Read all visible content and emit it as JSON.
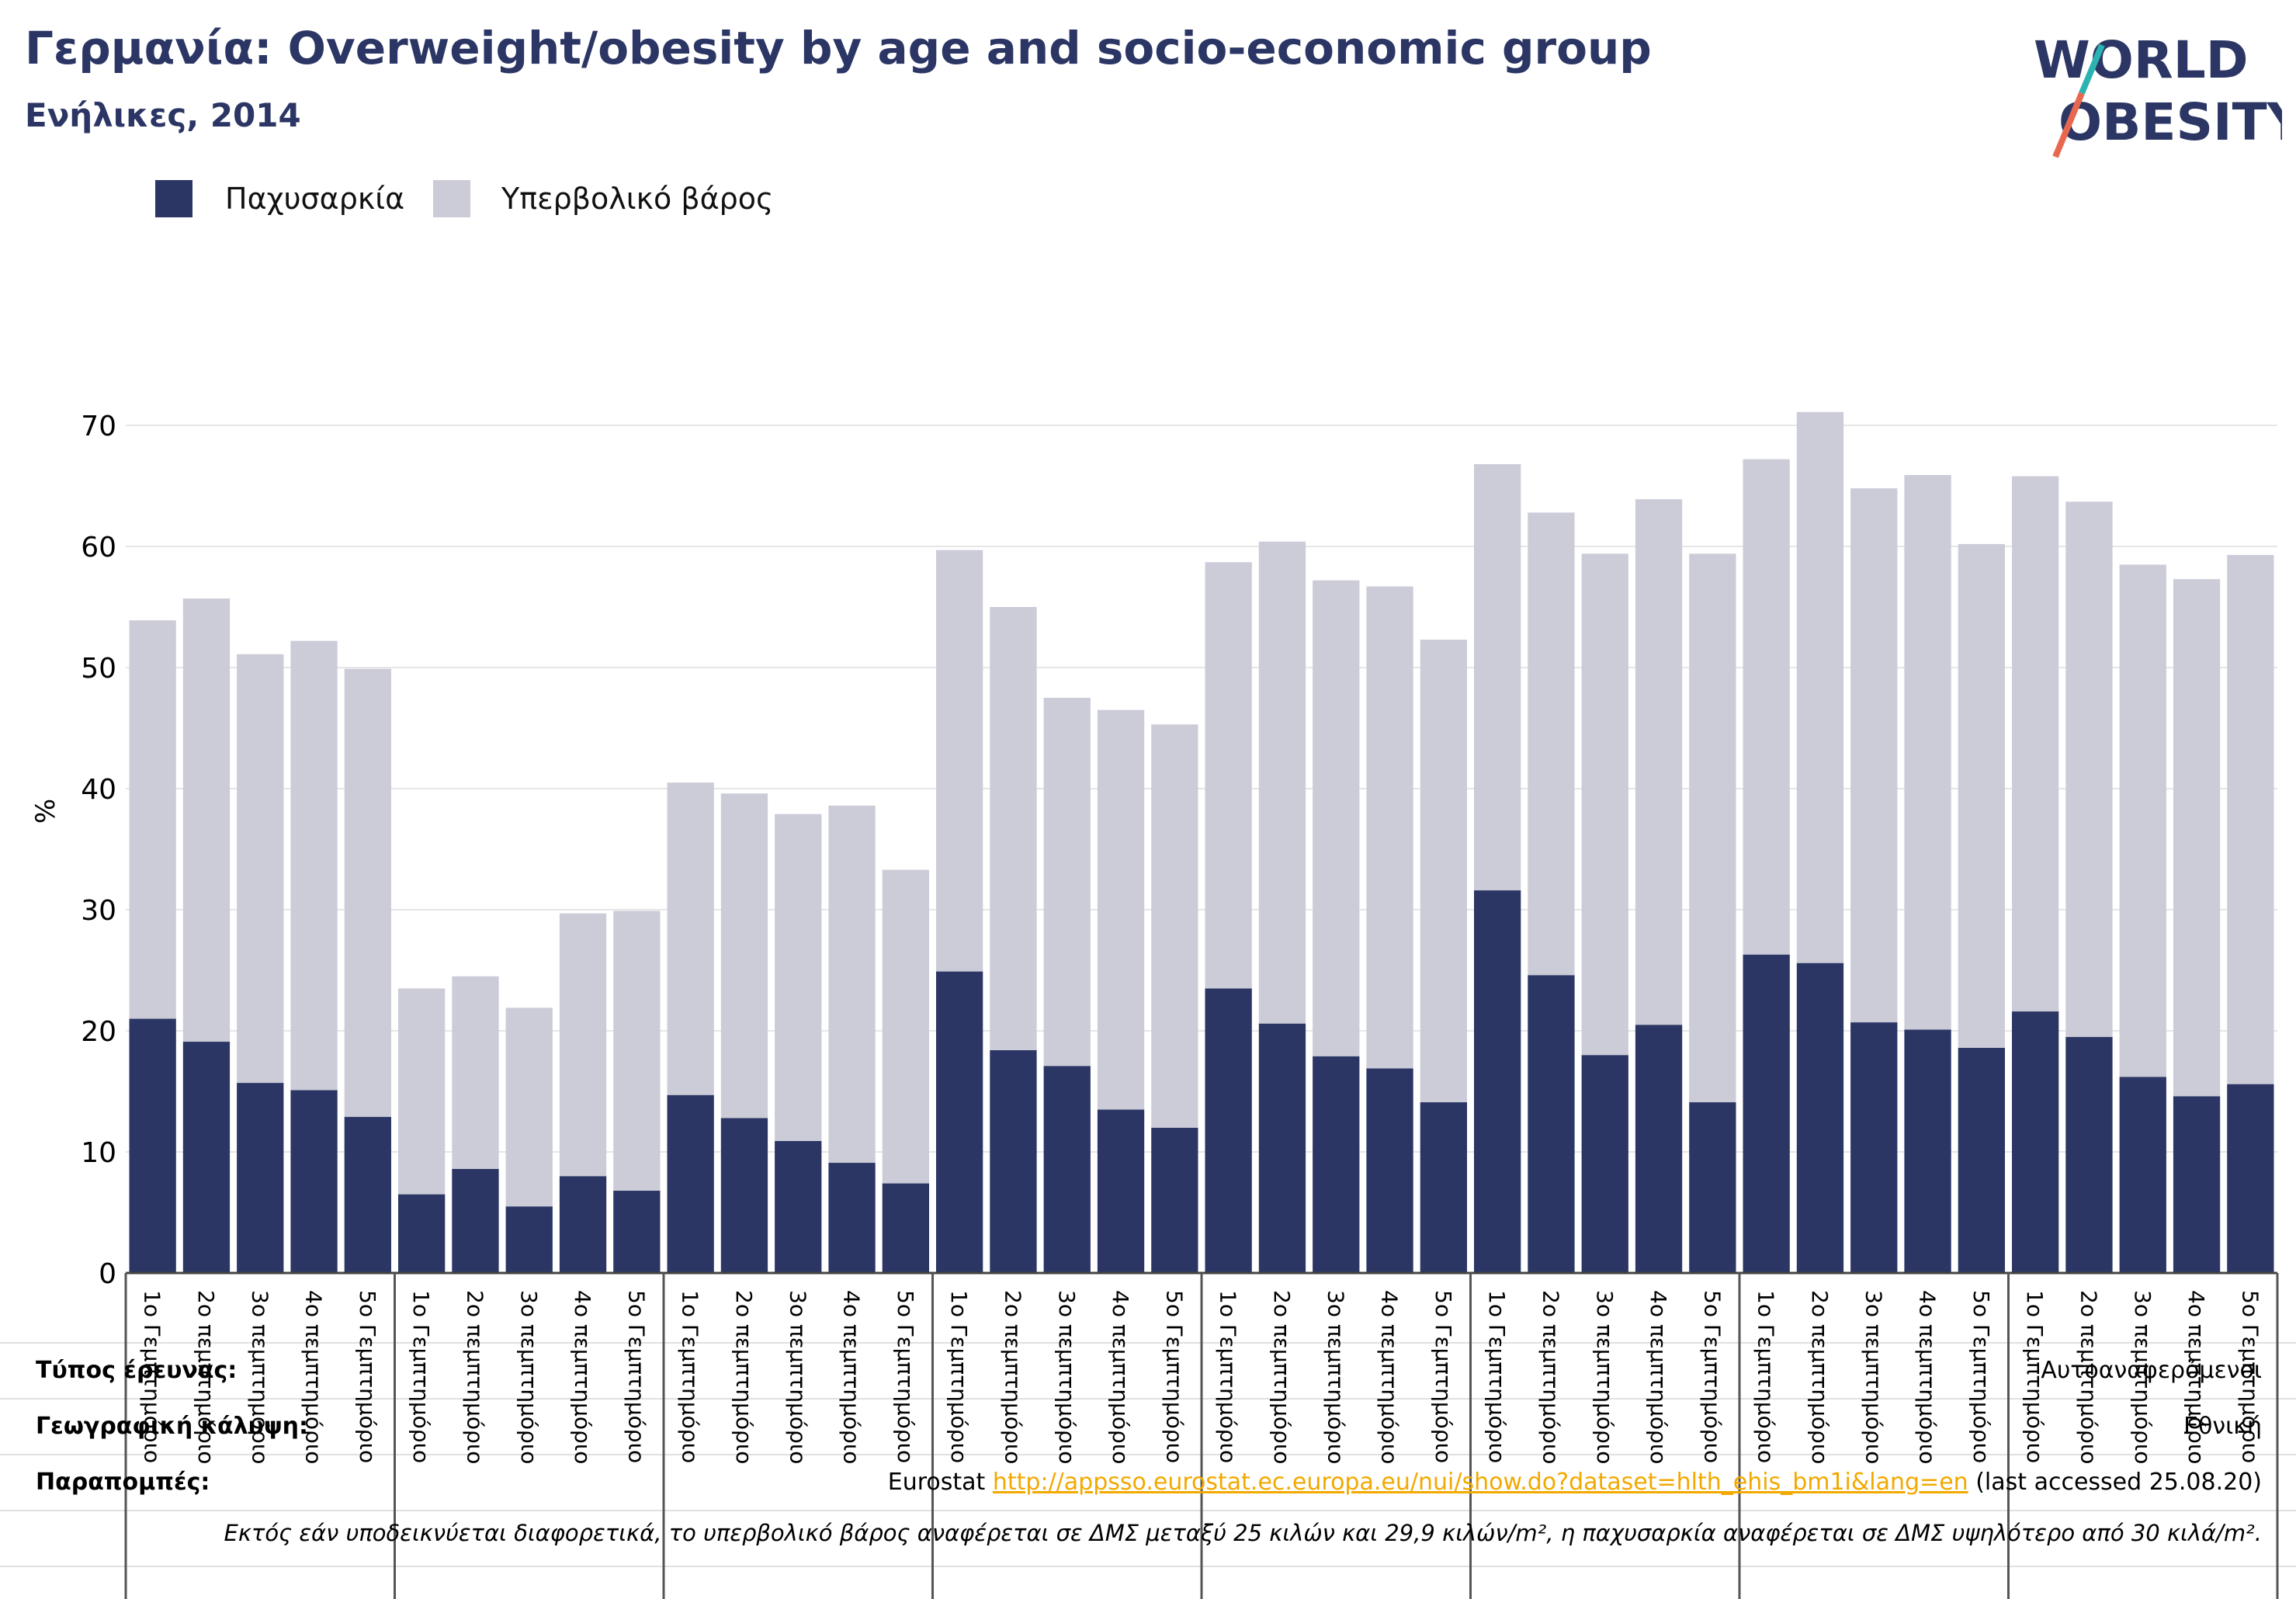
{
  "header": {
    "title": "Γερμανία: Overweight/obesity by age and socio-economic group",
    "subtitle": "Ενήλικες, 2014"
  },
  "logo": {
    "line1": "WORLD",
    "line2": "OBESITY"
  },
  "colors": {
    "obesity": "#2b3665",
    "overweight": "#cbccd8",
    "title": "#2b3665",
    "link": "#f2a900"
  },
  "chart_data": {
    "type": "bar",
    "stacked": true,
    "ylabel": "%",
    "ylim": [
      0,
      75
    ],
    "yticks": [
      0,
      10,
      20,
      30,
      40,
      50,
      60,
      70
    ],
    "grid": true,
    "legend_position": "top-left",
    "categories": [
      "1ο Γεμπτημόριο",
      "2ο πεμπτημόριο",
      "3ο πεμπτημόριο",
      "4ο πεμπτημόριο",
      "5ο Γεμπτημόριο",
      "1ο Γεμπτημόριο",
      "2ο πεμπτημόριο",
      "3ο πεμπτημόριο",
      "4ο πεμπτημόριο",
      "5ο Γεμπτημόριο",
      "1ο Γεμπτημόριο",
      "2ο πεμπτημόριο",
      "3ο πεμπτημόριο",
      "4ο πεμπτημόριο",
      "5ο Γεμπτημόριο",
      "1ο Γεμπτημόριο",
      "2ο πεμπτημόριο",
      "3ο πεμπτημόριο",
      "4ο πεμπτημόριο",
      "5ο Γεμπτημόριο",
      "1ο Γεμπτημόριο",
      "2ο πεμπτημόριο",
      "3ο πεμπτημόριο",
      "4ο πεμπτημόριο",
      "5ο Γεμπτημόριο",
      "1ο Γεμπτημόριο",
      "2ο πεμπτημόριο",
      "3ο πεμπτημόριο",
      "4ο πεμπτημόριο",
      "5ο Γεμπτημόριο",
      "1ο Γεμπτημόριο",
      "2ο πεμπτημόριο",
      "3ο πεμπτημόριο",
      "4ο πεμπτημόριο",
      "5ο Γεμπτημόριο",
      "1ο Γεμπτημόριο",
      "2ο πεμπτημόριο",
      "3ο πεμπτημόριο",
      "4ο πεμπτημόριο",
      "5ο Γεμπτημόριο"
    ],
    "series": [
      {
        "name": "Παχυσαρκία",
        "values": [
          21.0,
          19.1,
          15.7,
          15.1,
          12.9,
          6.5,
          8.6,
          5.5,
          8.0,
          6.8,
          14.7,
          12.8,
          10.9,
          9.1,
          7.4,
          24.9,
          18.4,
          17.1,
          13.5,
          12.0,
          23.5,
          20.6,
          17.9,
          16.9,
          14.1,
          31.6,
          24.6,
          18.0,
          20.5,
          14.1,
          26.3,
          25.6,
          20.7,
          20.1,
          18.6,
          21.6,
          19.5,
          16.2,
          14.6,
          15.6
        ]
      },
      {
        "name": "Υπερβολικό βάρος",
        "values": [
          32.9,
          36.6,
          35.4,
          37.1,
          37.0,
          17.0,
          15.9,
          16.4,
          21.7,
          23.1,
          25.8,
          26.8,
          27.0,
          29.5,
          25.9,
          34.8,
          36.6,
          30.4,
          33.0,
          33.3,
          35.2,
          39.8,
          39.3,
          39.8,
          38.2,
          35.2,
          38.2,
          41.4,
          43.4,
          45.3,
          40.9,
          45.5,
          44.1,
          45.8,
          41.6,
          44.2,
          44.2,
          42.3,
          42.7,
          43.7
        ]
      }
    ]
  },
  "footer": {
    "survey_type_label": "Τύπος έρευνας:",
    "survey_type_value": "Αυτοαναφερόμενοι",
    "coverage_label": "Γεωγραφική κάλυψη:",
    "coverage_value": "Εθνική",
    "references_label": "Παραπομπές:",
    "references_prefix": "Eurostat",
    "references_link": "http://appsso.eurostat.ec.europa.eu/nui/show.do?dataset=hlth_ehis_bm1i&lang=en",
    "references_suffix": "(last accessed 25.08.20)",
    "note": "Εκτός εάν υποδεικνύεται διαφορετικά, το υπερβολικό βάρος αναφέρεται σε ΔΜΣ μεταξύ 25 κιλών και 29,9 κιλών/m², η παχυσαρκία αναφέρεται σε ΔΜΣ υψηλότερο από 30 κιλά/m²."
  }
}
